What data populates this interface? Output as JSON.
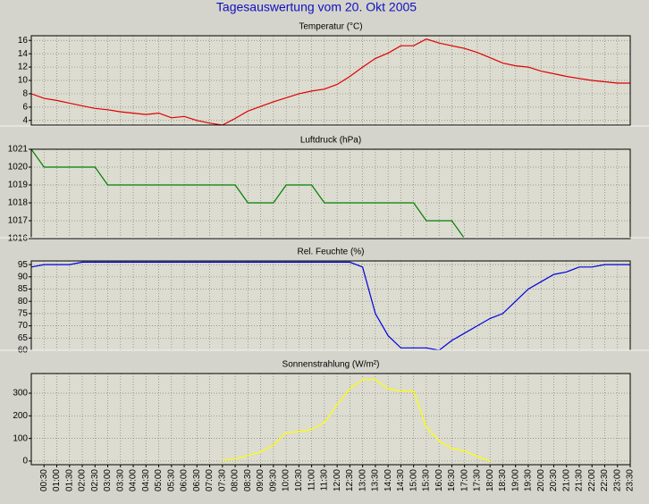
{
  "title": "Tagesauswertung vom 20. Okt 2005",
  "chart_data": [
    {
      "type": "line",
      "title": "Temperatur (°C)",
      "color": "#e00000",
      "grid": true,
      "ylim": [
        3.3,
        16.7
      ],
      "yticks": [
        4,
        6,
        8,
        10,
        12,
        14,
        16
      ],
      "values": [
        8.0,
        7.3,
        7.0,
        6.6,
        6.2,
        5.8,
        5.6,
        5.3,
        5.1,
        4.9,
        5.1,
        4.4,
        4.6,
        4.0,
        3.6,
        3.3,
        4.3,
        5.4,
        6.1,
        6.8,
        7.4,
        8.0,
        8.4,
        8.7,
        9.4,
        10.6,
        12.0,
        13.3,
        14.1,
        15.2,
        15.2,
        16.2,
        15.6,
        15.2,
        14.8,
        14.2,
        13.4,
        12.6,
        12.2,
        12.0,
        11.4,
        11.0,
        10.6,
        10.3,
        10.0,
        9.8,
        9.6,
        9.6
      ]
    },
    {
      "type": "line",
      "title": "Luftdruck (hPa)",
      "color": "#008000",
      "grid": true,
      "ylim": [
        1016,
        1021
      ],
      "yticks": [
        1016,
        1017,
        1018,
        1019,
        1020,
        1021
      ],
      "values": [
        1021,
        1020,
        1020,
        1020,
        1020,
        1020,
        1019,
        1019,
        1019,
        1019,
        1019,
        1019,
        1019,
        1019,
        1019,
        1019,
        1019,
        1018,
        1018,
        1018,
        1019,
        1019,
        1019,
        1018,
        1018,
        1018,
        1018,
        1018,
        1018,
        1018,
        1018,
        1017,
        1017,
        1017,
        1016,
        null,
        null,
        null,
        null,
        null,
        null,
        null,
        null,
        null,
        null,
        null,
        null,
        null
      ]
    },
    {
      "type": "line",
      "title": "Rel. Feuchte (%)",
      "color": "#0000e0",
      "grid": true,
      "ylim": [
        60,
        96.5
      ],
      "yticks": [
        60,
        65,
        70,
        75,
        80,
        85,
        90,
        95
      ],
      "values": [
        94,
        95,
        95,
        95,
        96,
        96,
        96,
        96,
        96,
        96,
        96,
        96,
        96,
        96,
        96,
        96,
        96,
        96,
        96,
        96,
        96,
        96,
        96,
        96,
        96,
        96,
        94,
        75,
        66,
        61,
        61,
        61,
        60,
        64,
        67,
        70,
        73,
        75,
        80,
        85,
        88,
        91,
        92,
        94,
        94,
        95,
        95,
        95
      ]
    },
    {
      "type": "line",
      "title": "Sonnenstrahlung (W/m²)",
      "color": "#ffff00",
      "grid": true,
      "ylim": [
        -16,
        387
      ],
      "yticks": [
        0,
        100,
        200,
        300
      ],
      "categories": [
        null,
        "00:30",
        "01:00",
        "01:30",
        "02:00",
        "02:30",
        "03:00",
        "03:30",
        "04:00",
        "04:30",
        "05:00",
        "05:30",
        "06:00",
        "06:30",
        "07:00",
        "07:30",
        "08:00",
        "08:30",
        "09:00",
        "09:30",
        "10:00",
        "10:30",
        "11:00",
        "11:30",
        "12:00",
        "12:30",
        "13:00",
        "13:30",
        "14:00",
        "14:30",
        "15:00",
        "15:30",
        "16:00",
        "16:30",
        "17:00",
        "17:30",
        "18:00",
        "18:30",
        "19:00",
        "19:30",
        "20:00",
        "20:30",
        "21:00",
        "21:30",
        "22:00",
        "22:30",
        "23:00",
        "23:30"
      ],
      "values": [
        null,
        null,
        null,
        null,
        null,
        null,
        null,
        null,
        null,
        null,
        null,
        null,
        null,
        null,
        null,
        2,
        10,
        25,
        40,
        70,
        125,
        130,
        140,
        170,
        250,
        320,
        360,
        360,
        320,
        310,
        310,
        150,
        90,
        55,
        45,
        20,
        0,
        null,
        null,
        null,
        null,
        null,
        null,
        null,
        null,
        null,
        null,
        null
      ]
    }
  ]
}
